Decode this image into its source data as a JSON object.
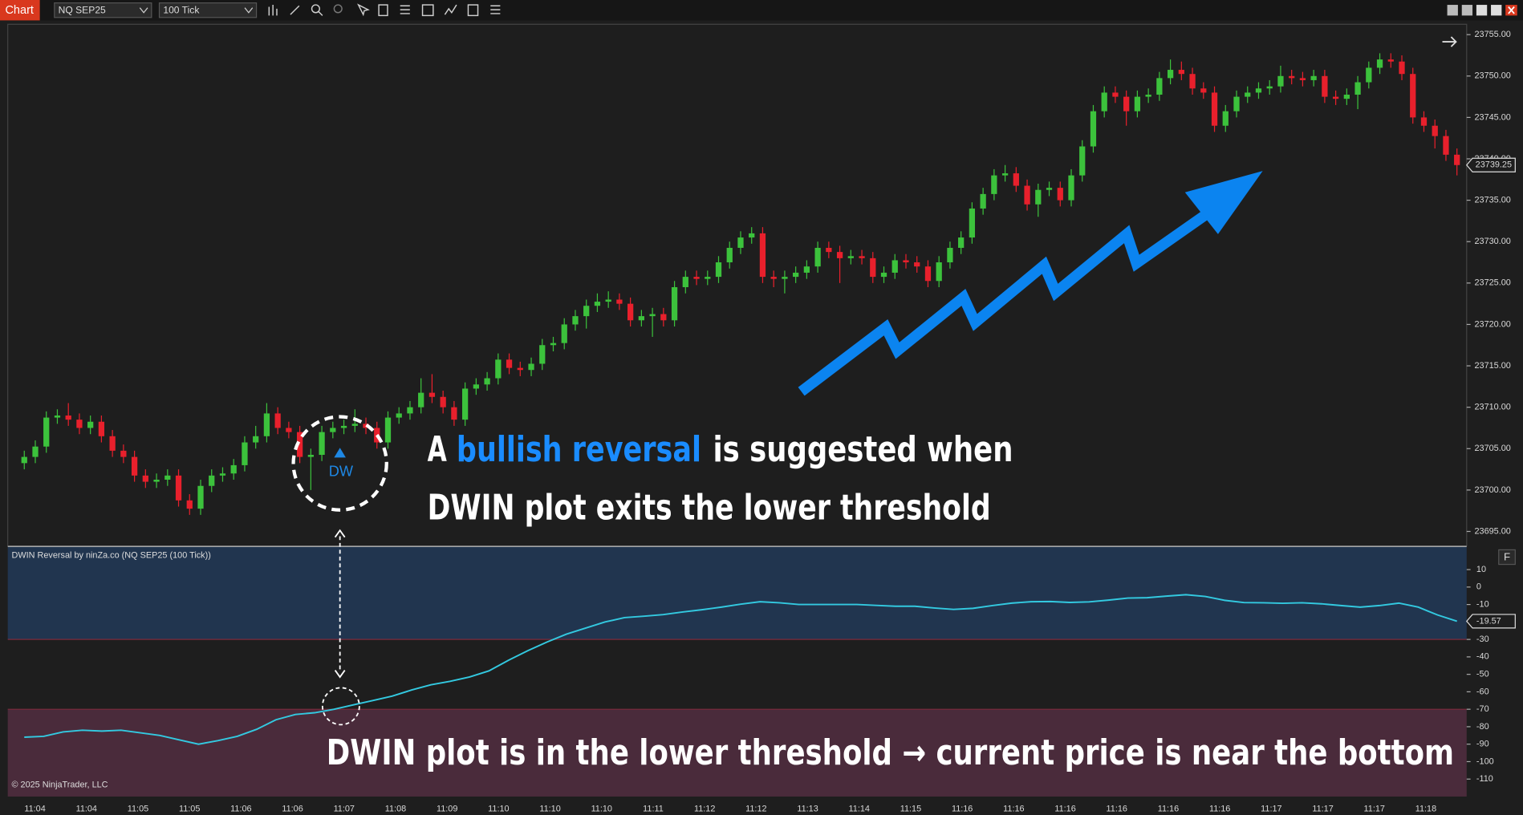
{
  "toolbar": {
    "tab": "Chart",
    "instrument": "NQ SEP25",
    "period": "100 Tick"
  },
  "chart_data": [
    {
      "type": "candlestick",
      "up_color": "#3cc23c",
      "down_color": "#e8202c",
      "ylim": [
        23693.25,
        23756.25
      ],
      "yticks": [
        {
          "value": 23695,
          "label": "23695.00"
        },
        {
          "value": 23700,
          "label": "23700.00"
        },
        {
          "value": 23705,
          "label": "23705.00"
        },
        {
          "value": 23710,
          "label": "23710.00"
        },
        {
          "value": 23715,
          "label": "23715.00"
        },
        {
          "value": 23720,
          "label": "23720.00"
        },
        {
          "value": 23725,
          "label": "23725.00"
        },
        {
          "value": 23730,
          "label": "23730.00"
        },
        {
          "value": 23735,
          "label": "23735.00"
        },
        {
          "value": 23740,
          "label": "23740.00"
        },
        {
          "value": 23745,
          "label": "23745.00"
        },
        {
          "value": 23750,
          "label": "23750.00"
        },
        {
          "value": 23755,
          "label": "23755.00"
        }
      ],
      "x_labels": [
        "11:04",
        "11:04",
        "11:05",
        "11:05",
        "11:06",
        "11:06",
        "11:07",
        "11:08",
        "11:09",
        "11:10",
        "11:10",
        "11:10",
        "11:11",
        "11:12",
        "11:12",
        "11:13",
        "11:14",
        "11:15",
        "11:16",
        "11:16",
        "11:16",
        "11:16",
        "11:16",
        "11:16",
        "11:17",
        "11:17",
        "11:17",
        "11:18"
      ],
      "candles": [
        [
          23703.25,
          23704.75,
          23702.5,
          23704.0
        ],
        [
          23704.0,
          23706.0,
          23703.25,
          23705.25
        ],
        [
          23705.25,
          23709.5,
          23704.5,
          23708.75
        ],
        [
          23708.75,
          23709.75,
          23708.0,
          23709.0
        ],
        [
          23709.0,
          23710.5,
          23707.75,
          23708.5
        ],
        [
          23708.5,
          23709.25,
          23706.75,
          23707.5
        ],
        [
          23707.5,
          23709.0,
          23706.75,
          23708.25
        ],
        [
          23708.25,
          23709.0,
          23705.75,
          23706.5
        ],
        [
          23706.5,
          23707.25,
          23704.0,
          23704.75
        ],
        [
          23704.75,
          23705.5,
          23703.25,
          23704.0
        ],
        [
          23704.0,
          23704.75,
          23701.0,
          23701.75
        ],
        [
          23701.75,
          23702.5,
          23700.25,
          23701.0
        ],
        [
          23701.0,
          23702.0,
          23700.25,
          23701.25
        ],
        [
          23701.25,
          23702.5,
          23700.5,
          23701.75
        ],
        [
          23701.75,
          23702.5,
          23698.0,
          23698.75
        ],
        [
          23698.75,
          23699.5,
          23697.0,
          23697.75
        ],
        [
          23697.75,
          23701.25,
          23697.0,
          23700.5
        ],
        [
          23700.5,
          23702.5,
          23699.75,
          23701.75
        ],
        [
          23701.75,
          23702.75,
          23701.0,
          23702.0
        ],
        [
          23702.0,
          23703.75,
          23701.25,
          23703.0
        ],
        [
          23703.0,
          23706.5,
          23702.25,
          23705.75
        ],
        [
          23705.75,
          23707.75,
          23705.0,
          23706.5
        ],
        [
          23706.5,
          23710.5,
          23705.75,
          23709.25
        ],
        [
          23709.25,
          23710.0,
          23706.75,
          23707.5
        ],
        [
          23707.5,
          23708.25,
          23706.25,
          23707.0
        ],
        [
          23707.0,
          23707.75,
          23703.25,
          23704.0
        ],
        [
          23704.0,
          23705.0,
          23700.0,
          23704.25
        ],
        [
          23704.25,
          23707.75,
          23703.5,
          23707.0
        ],
        [
          23707.0,
          23708.25,
          23706.25,
          23707.5
        ],
        [
          23707.5,
          23708.5,
          23706.75,
          23707.75
        ],
        [
          23707.75,
          23709.75,
          23707.0,
          23708.0
        ],
        [
          23708.0,
          23708.75,
          23706.75,
          23707.5
        ],
        [
          23707.5,
          23708.25,
          23705.0,
          23705.75
        ],
        [
          23705.75,
          23709.5,
          23705.0,
          23708.75
        ],
        [
          23708.75,
          23710.0,
          23708.0,
          23709.25
        ],
        [
          23709.25,
          23710.75,
          23708.5,
          23710.0
        ],
        [
          23710.0,
          23713.5,
          23709.25,
          23711.75
        ],
        [
          23711.75,
          23714.0,
          23710.5,
          23711.25
        ],
        [
          23711.25,
          23712.0,
          23709.25,
          23710.0
        ],
        [
          23710.0,
          23710.75,
          23707.75,
          23708.5
        ],
        [
          23708.5,
          23713.0,
          23707.75,
          23712.25
        ],
        [
          23712.25,
          23713.5,
          23711.5,
          23712.75
        ],
        [
          23712.75,
          23714.25,
          23712.0,
          23713.5
        ],
        [
          23713.5,
          23716.5,
          23712.75,
          23715.75
        ],
        [
          23715.75,
          23716.5,
          23714.0,
          23714.75
        ],
        [
          23714.75,
          23715.5,
          23713.75,
          23714.5
        ],
        [
          23714.5,
          23716.0,
          23713.75,
          23715.25
        ],
        [
          23715.25,
          23718.25,
          23714.5,
          23717.5
        ],
        [
          23717.5,
          23718.5,
          23716.75,
          23717.75
        ],
        [
          23717.75,
          23720.75,
          23717.0,
          23720.0
        ],
        [
          23720.0,
          23721.75,
          23719.25,
          23721.0
        ],
        [
          23721.0,
          23723.0,
          23719.5,
          23722.25
        ],
        [
          23722.25,
          23723.75,
          23721.5,
          23722.75
        ],
        [
          23722.75,
          23724.0,
          23722.0,
          23723.0
        ],
        [
          23723.0,
          23723.75,
          23721.75,
          23722.5
        ],
        [
          23722.5,
          23723.25,
          23719.75,
          23720.5
        ],
        [
          23720.5,
          23721.75,
          23719.75,
          23721.0
        ],
        [
          23721.0,
          23722.0,
          23718.5,
          23721.25
        ],
        [
          23721.25,
          23722.0,
          23719.75,
          23720.5
        ],
        [
          23720.5,
          23725.25,
          23719.75,
          23724.5
        ],
        [
          23724.5,
          23726.5,
          23723.75,
          23725.75
        ],
        [
          23725.75,
          23726.5,
          23724.75,
          23725.5
        ],
        [
          23725.5,
          23726.5,
          23724.75,
          23725.75
        ],
        [
          23725.75,
          23728.25,
          23725.0,
          23727.5
        ],
        [
          23727.5,
          23730.0,
          23726.75,
          23729.25
        ],
        [
          23729.25,
          23731.25,
          23728.5,
          23730.5
        ],
        [
          23730.5,
          23731.75,
          23729.75,
          23731.0
        ],
        [
          23731.0,
          23731.75,
          23725.0,
          23725.75
        ],
        [
          23725.75,
          23726.5,
          23724.5,
          23725.5
        ],
        [
          23725.5,
          23726.5,
          23723.75,
          23725.75
        ],
        [
          23725.75,
          23727.0,
          23725.0,
          23726.25
        ],
        [
          23726.25,
          23727.75,
          23725.5,
          23727.0
        ],
        [
          23727.0,
          23730.0,
          23726.25,
          23729.25
        ],
        [
          23729.25,
          23730.0,
          23728.0,
          23728.75
        ],
        [
          23728.75,
          23729.5,
          23725.0,
          23728.0
        ],
        [
          23728.0,
          23729.0,
          23727.25,
          23728.25
        ],
        [
          23728.25,
          23729.0,
          23727.25,
          23728.0
        ],
        [
          23728.0,
          23728.75,
          23725.0,
          23725.75
        ],
        [
          23725.75,
          23727.0,
          23725.0,
          23726.25
        ],
        [
          23726.25,
          23728.5,
          23725.5,
          23727.75
        ],
        [
          23727.75,
          23728.5,
          23726.75,
          23727.5
        ],
        [
          23727.5,
          23728.25,
          23726.25,
          23727.0
        ],
        [
          23727.0,
          23727.75,
          23724.5,
          23725.25
        ],
        [
          23725.25,
          23728.25,
          23724.5,
          23727.5
        ],
        [
          23727.5,
          23730.0,
          23726.75,
          23729.25
        ],
        [
          23729.25,
          23731.25,
          23728.5,
          23730.5
        ],
        [
          23730.5,
          23734.75,
          23729.75,
          23734.0
        ],
        [
          23734.0,
          23736.5,
          23733.25,
          23735.75
        ],
        [
          23735.75,
          23738.75,
          23735.0,
          23738.0
        ],
        [
          23738.0,
          23739.25,
          23737.25,
          23738.25
        ],
        [
          23738.25,
          23739.0,
          23736.0,
          23736.75
        ],
        [
          23736.75,
          23737.5,
          23733.75,
          23734.5
        ],
        [
          23734.5,
          23737.0,
          23733.0,
          23736.25
        ],
        [
          23736.25,
          23737.25,
          23735.5,
          23736.5
        ],
        [
          23736.5,
          23737.25,
          23734.25,
          23735.0
        ],
        [
          23735.0,
          23738.75,
          23734.25,
          23738.0
        ],
        [
          23738.0,
          23742.25,
          23737.25,
          23741.5
        ],
        [
          23741.5,
          23746.5,
          23740.75,
          23745.75
        ],
        [
          23745.75,
          23748.75,
          23745.0,
          23748.0
        ],
        [
          23748.0,
          23748.75,
          23746.75,
          23747.5
        ],
        [
          23747.5,
          23748.25,
          23744.0,
          23745.75
        ],
        [
          23745.75,
          23748.25,
          23745.0,
          23747.5
        ],
        [
          23747.5,
          23748.5,
          23746.75,
          23747.75
        ],
        [
          23747.75,
          23750.5,
          23747.0,
          23749.75
        ],
        [
          23749.75,
          23752.0,
          23749.0,
          23750.75
        ],
        [
          23750.75,
          23751.75,
          23749.5,
          23750.25
        ],
        [
          23750.25,
          23751.0,
          23747.75,
          23748.5
        ],
        [
          23748.5,
          23749.25,
          23747.25,
          23748.0
        ],
        [
          23748.0,
          23748.75,
          23743.25,
          23744.0
        ],
        [
          23744.0,
          23746.5,
          23743.25,
          23745.75
        ],
        [
          23745.75,
          23748.25,
          23745.0,
          23747.5
        ],
        [
          23747.5,
          23748.75,
          23746.75,
          23748.0
        ],
        [
          23748.0,
          23749.25,
          23747.25,
          23748.5
        ],
        [
          23748.5,
          23749.5,
          23747.75,
          23748.75
        ],
        [
          23748.75,
          23751.25,
          23748.0,
          23750.0
        ],
        [
          23750.0,
          23750.75,
          23749.0,
          23749.75
        ],
        [
          23749.75,
          23750.5,
          23748.75,
          23749.5
        ],
        [
          23749.5,
          23750.75,
          23748.75,
          23750.0
        ],
        [
          23750.0,
          23750.75,
          23746.75,
          23747.5
        ],
        [
          23747.5,
          23748.25,
          23746.5,
          23747.25
        ],
        [
          23747.25,
          23748.5,
          23746.5,
          23747.75
        ],
        [
          23747.75,
          23750.0,
          23746.0,
          23749.25
        ],
        [
          23749.25,
          23751.75,
          23748.5,
          23751.0
        ],
        [
          23751.0,
          23752.75,
          23750.25,
          23752.0
        ],
        [
          23752.0,
          23752.75,
          23751.0,
          23751.75
        ],
        [
          23751.75,
          23752.5,
          23749.5,
          23750.25
        ],
        [
          23750.25,
          23751.0,
          23744.25,
          23745.0
        ],
        [
          23745.0,
          23745.75,
          23743.25,
          23744.0
        ],
        [
          23744.0,
          23744.75,
          23741.25,
          23742.75
        ],
        [
          23742.75,
          23743.5,
          23739.75,
          23740.5
        ],
        [
          23740.5,
          23741.25,
          23738.0,
          23739.25
        ]
      ]
    },
    {
      "type": "line",
      "title": "DWIN Reversal by ninZa.co (NQ SEP25 (100 Tick))",
      "color": "#33c9e0",
      "ylim": [
        -120,
        23
      ],
      "yticks": [
        10,
        0,
        -10,
        -20,
        -30,
        -40,
        -50,
        -60,
        -70,
        -80,
        -90,
        -100,
        -110
      ],
      "upper_threshold": -30,
      "lower_threshold": -70,
      "upper_color": "#21354f",
      "lower_color": "#4a2b3b",
      "values": [
        -86,
        -85.5,
        -83,
        -82,
        -82.5,
        -82,
        -83.5,
        -85,
        -87.5,
        -90,
        -88,
        -85.5,
        -81.5,
        -76,
        -73,
        -72,
        -70,
        -67.5,
        -65,
        -62.5,
        -59,
        -56,
        -54,
        -51.5,
        -48,
        -42,
        -36.5,
        -31.5,
        -27,
        -23.5,
        -20,
        -17.5,
        -16.7,
        -15.8,
        -14.3,
        -13,
        -11.5,
        -9.8,
        -8.4,
        -9,
        -10,
        -10,
        -10,
        -10,
        -10.5,
        -11,
        -11,
        -12,
        -12.8,
        -12.2,
        -10.6,
        -9.2,
        -8.4,
        -8.3,
        -8.8,
        -8.5,
        -7.5,
        -6.3,
        -6.1,
        -5.2,
        -4.4,
        -5.4,
        -7.6,
        -8.9,
        -9,
        -9.3,
        -9,
        -9.6,
        -10.6,
        -11.5,
        -10.6,
        -9.2,
        -11.5,
        -16,
        -19.57
      ]
    }
  ],
  "annotations": {
    "marker": "DW",
    "line1": [
      "A",
      "bullish reversal",
      "is suggested when"
    ],
    "line2": "DWIN plot exits the lower threshold",
    "line3": "DWIN plot is in the lower threshold → current price is near the bottom"
  },
  "panel_button": "F",
  "copyright": "© 2025 NinjaTrader, LLC"
}
